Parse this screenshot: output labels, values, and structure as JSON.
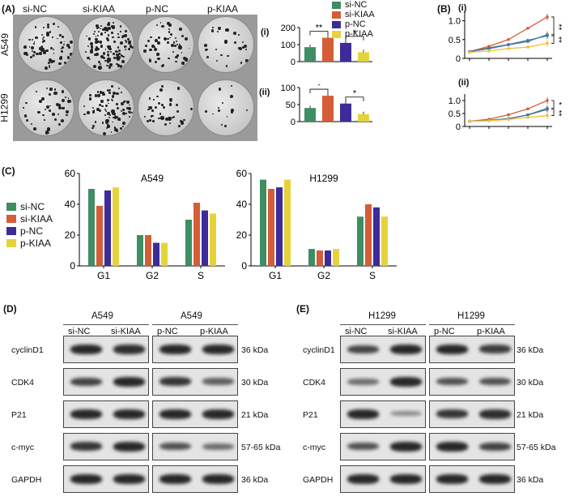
{
  "panels": {
    "a": "(A)",
    "b": "(B)",
    "c": "(C)",
    "d": "(D)",
    "e": "(E)"
  },
  "panelA": {
    "columns": [
      "si-NC",
      "si-KIAA",
      "p-NC",
      "p-KIAA"
    ],
    "rows": [
      "A549",
      "H1299"
    ]
  },
  "legend": {
    "items": [
      {
        "name": "si-NC",
        "color": "#3e8d63"
      },
      {
        "name": "si-KIAA",
        "color": "#d45d37"
      },
      {
        "name": "p-NC",
        "color": "#3d2b9a"
      },
      {
        "name": "p-KIAA",
        "color": "#e6d33c"
      }
    ]
  },
  "sublabels": {
    "i": "(i)",
    "ii": "(ii)"
  },
  "colors": {
    "siNC": "#3e8d63",
    "siKIAA": "#d45d37",
    "pNC": "#3d2b9a",
    "pKIAA": "#e6d33c",
    "line_pNC": "#4a6fb5",
    "line_pKIAA": "#f0c232"
  },
  "chart_data": [
    {
      "type": "bar",
      "id": "A-i",
      "categories": [
        "si-NC",
        "si-KIAA",
        "p-NC",
        "p-KIAA"
      ],
      "values": [
        85,
        140,
        110,
        55
      ],
      "yticks": [
        "0",
        "100",
        "200"
      ],
      "ylim": [
        0,
        200
      ],
      "sig": [
        "**",
        "*"
      ]
    },
    {
      "type": "bar",
      "id": "A-ii",
      "categories": [
        "si-NC",
        "si-KIAA",
        "p-NC",
        "p-KIAA"
      ],
      "values": [
        40,
        76,
        53,
        22
      ],
      "yticks": [
        "0",
        "50",
        "100"
      ],
      "ylim": [
        0,
        100
      ],
      "sig": [
        "*",
        "*"
      ]
    },
    {
      "type": "line",
      "id": "B-i",
      "x": [
        1,
        2,
        3,
        4,
        5
      ],
      "series": [
        {
          "name": "si-NC",
          "values": [
            0.18,
            0.28,
            0.37,
            0.48,
            0.6
          ]
        },
        {
          "name": "si-KIAA",
          "values": [
            0.18,
            0.32,
            0.5,
            0.8,
            1.1
          ]
        },
        {
          "name": "p-NC",
          "values": [
            0.18,
            0.26,
            0.36,
            0.45,
            0.63
          ]
        },
        {
          "name": "p-KIAA",
          "values": [
            0.16,
            0.2,
            0.26,
            0.3,
            0.4
          ]
        }
      ],
      "yticks": [
        "0",
        "0.5",
        "1.0"
      ],
      "ylim": [
        0,
        1.25
      ],
      "sig": [
        "**",
        "**"
      ]
    },
    {
      "type": "line",
      "id": "B-ii",
      "x": [
        1,
        2,
        3,
        4,
        5
      ],
      "series": [
        {
          "name": "si-NC",
          "values": [
            0.2,
            0.24,
            0.3,
            0.45,
            0.7
          ]
        },
        {
          "name": "si-KIAA",
          "values": [
            0.2,
            0.28,
            0.45,
            0.68,
            1.0
          ]
        },
        {
          "name": "p-NC",
          "values": [
            0.2,
            0.23,
            0.3,
            0.44,
            0.66
          ]
        },
        {
          "name": "p-KIAA",
          "values": [
            0.2,
            0.22,
            0.27,
            0.35,
            0.42
          ]
        }
      ],
      "yticks": [
        "0",
        "0.5",
        "1.0"
      ],
      "ylim": [
        0,
        1.25
      ],
      "sig": [
        "*",
        "**"
      ]
    },
    {
      "type": "bar",
      "id": "C-A549",
      "title": "A549",
      "categories": [
        "G1",
        "G2",
        "S"
      ],
      "series": [
        {
          "name": "si-NC",
          "values": [
            50,
            20,
            30
          ]
        },
        {
          "name": "si-KIAA",
          "values": [
            39,
            20,
            41
          ]
        },
        {
          "name": "p-NC",
          "values": [
            49,
            15,
            36
          ]
        },
        {
          "name": "p-KIAA",
          "values": [
            51,
            15,
            34
          ]
        }
      ],
      "yticks": [
        "0",
        "20",
        "40",
        "60"
      ],
      "ylim": [
        0,
        60
      ]
    },
    {
      "type": "bar",
      "id": "C-H1299",
      "title": "H1299",
      "categories": [
        "G1",
        "G2",
        "S"
      ],
      "series": [
        {
          "name": "si-NC",
          "values": [
            56,
            11,
            32
          ]
        },
        {
          "name": "si-KIAA",
          "values": [
            50,
            10,
            40
          ]
        },
        {
          "name": "p-NC",
          "values": [
            51,
            10,
            38
          ]
        },
        {
          "name": "p-KIAA",
          "values": [
            56,
            11,
            32
          ]
        }
      ],
      "yticks": [
        "0",
        "20",
        "40",
        "60"
      ],
      "ylim": [
        0,
        60
      ]
    }
  ],
  "westernD": {
    "group1": {
      "cell": "A549",
      "lanes": [
        "si-NC",
        "si-KIAA"
      ]
    },
    "group2": {
      "cell": "A549",
      "lanes": [
        "p-NC",
        "p-KIAA"
      ]
    },
    "rows": [
      {
        "label": "cyclinD1",
        "kda": "36 kDa"
      },
      {
        "label": "CDK4",
        "kda": "30 kDa"
      },
      {
        "label": "P21",
        "kda": "21 kDa"
      },
      {
        "label": "c-myc",
        "kda": "57-65 kDa"
      },
      {
        "label": "GAPDH",
        "kda": "36 kDa"
      }
    ]
  },
  "westernE": {
    "group1": {
      "cell": "H1299",
      "lanes": [
        "si-NC",
        "si-KIAA"
      ]
    },
    "group2": {
      "cell": "H1299",
      "lanes": [
        "p-NC",
        "p-KIAA"
      ]
    },
    "rows": [
      {
        "label": "cyclinD1",
        "kda": "36 kDa"
      },
      {
        "label": "CDK4",
        "kda": "30 kDa"
      },
      {
        "label": "P21",
        "kda": "21 kDa"
      },
      {
        "label": "c-myc",
        "kda": "57-65 kDa"
      },
      {
        "label": "GAPDH",
        "kda": "36 kDa"
      }
    ]
  }
}
